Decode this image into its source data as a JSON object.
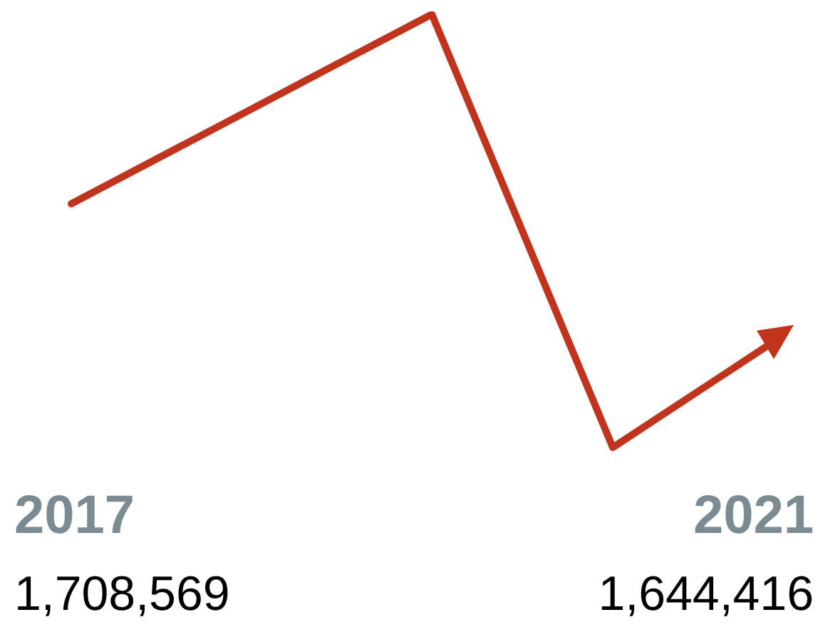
{
  "chart_data": {
    "type": "other",
    "categories": [
      "2017",
      "2021"
    ],
    "values": [
      1708569,
      1644416
    ],
    "value_labels": [
      "1,708,569",
      "1,644,416"
    ],
    "color": "#c0341d"
  }
}
